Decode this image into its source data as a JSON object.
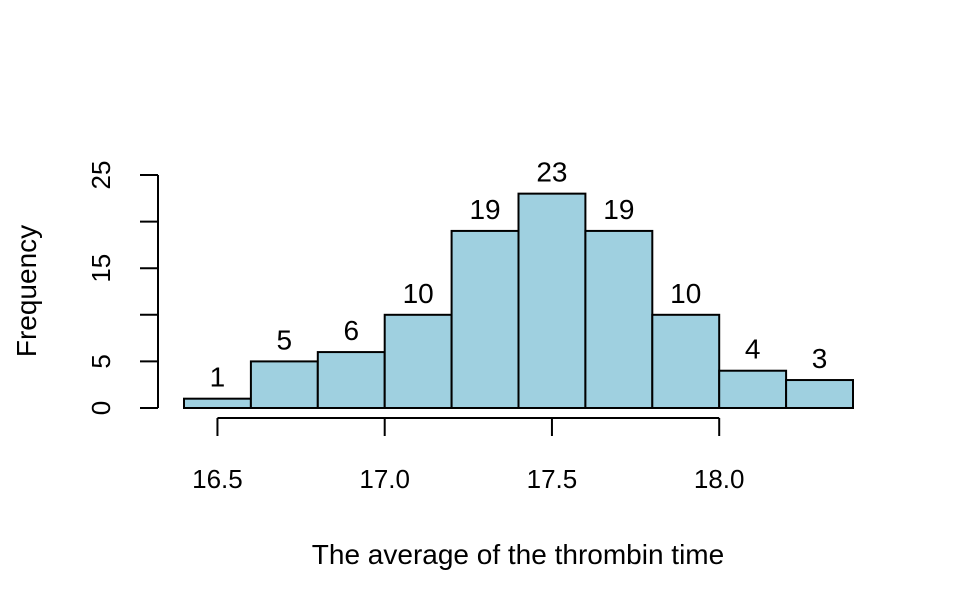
{
  "chart_data": {
    "type": "bar",
    "subtype": "histogram",
    "bins": [
      {
        "from": 16.4,
        "to": 16.6,
        "count": 1
      },
      {
        "from": 16.6,
        "to": 16.8,
        "count": 5
      },
      {
        "from": 16.8,
        "to": 17.0,
        "count": 6
      },
      {
        "from": 17.0,
        "to": 17.2,
        "count": 10
      },
      {
        "from": 17.2,
        "to": 17.4,
        "count": 19
      },
      {
        "from": 17.4,
        "to": 17.6,
        "count": 23
      },
      {
        "from": 17.6,
        "to": 17.8,
        "count": 19
      },
      {
        "from": 17.8,
        "to": 18.0,
        "count": 10
      },
      {
        "from": 18.0,
        "to": 18.2,
        "count": 4
      },
      {
        "from": 18.2,
        "to": 18.4,
        "count": 3
      }
    ],
    "data_labels": [
      "1",
      "5",
      "6",
      "10",
      "19",
      "23",
      "19",
      "10",
      "4",
      "3"
    ],
    "title": "",
    "xlabel": "The average of the thrombin time",
    "ylabel": "Frequency",
    "xlim": [
      16.4,
      18.4
    ],
    "ylim": [
      0,
      25
    ],
    "x_ticks": [
      16.5,
      17.0,
      17.5,
      18.0
    ],
    "x_tick_labels": [
      "16.5",
      "17.0",
      "17.5",
      "18.0"
    ],
    "y_ticks": [
      0,
      5,
      10,
      15,
      20,
      25
    ],
    "y_tick_labels": [
      "0",
      "5",
      "",
      "15",
      "",
      "25"
    ],
    "bar_color": "#9fd0e0",
    "edge_color": "#000000",
    "grid": false,
    "legend": "none"
  }
}
